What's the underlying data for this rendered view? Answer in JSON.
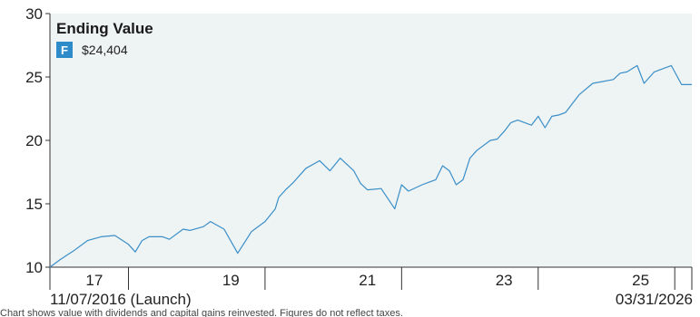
{
  "chart_data": {
    "type": "line",
    "title": "Ending Value",
    "legend": [
      {
        "key": "F",
        "value": "$24,404",
        "color": "#2e8bc9"
      }
    ],
    "series": [
      {
        "color": "#3a8fc8",
        "x": [
          2016.85,
          2017.0,
          2017.2,
          2017.4,
          2017.6,
          2017.8,
          2018.0,
          2018.1,
          2018.2,
          2018.3,
          2018.5,
          2018.6,
          2018.8,
          2018.9,
          2019.1,
          2019.2,
          2019.4,
          2019.6,
          2019.8,
          2020.0,
          2020.15,
          2020.2,
          2020.3,
          2020.4,
          2020.6,
          2020.8,
          2020.95,
          2021.1,
          2021.3,
          2021.4,
          2021.5,
          2021.7,
          2021.9,
          2022.0,
          2022.1,
          2022.3,
          2022.4,
          2022.5,
          2022.6,
          2022.7,
          2022.8,
          2022.9,
          2023.0,
          2023.1,
          2023.3,
          2023.4,
          2023.5,
          2023.6,
          2023.7,
          2023.9,
          2024.0,
          2024.1,
          2024.2,
          2024.3,
          2024.4,
          2024.5,
          2024.6,
          2024.8,
          2024.9,
          2025.1,
          2025.2,
          2025.3,
          2025.45,
          2025.55,
          2025.7,
          2025.8,
          2025.95,
          2026.1,
          2026.25
        ],
        "y": [
          10.0,
          10.6,
          11.3,
          12.1,
          12.4,
          12.5,
          11.8,
          11.2,
          12.1,
          12.4,
          12.4,
          12.2,
          13.0,
          12.9,
          13.2,
          13.6,
          13.0,
          11.1,
          12.8,
          13.6,
          14.6,
          15.5,
          16.1,
          16.6,
          17.8,
          18.4,
          17.6,
          18.6,
          17.6,
          16.6,
          16.1,
          16.2,
          14.6,
          16.5,
          16.0,
          16.5,
          16.7,
          16.9,
          18.0,
          17.6,
          16.5,
          16.9,
          18.6,
          19.2,
          20.0,
          20.1,
          20.7,
          21.4,
          21.6,
          21.2,
          21.9,
          21.0,
          21.9,
          22.0,
          22.2,
          22.9,
          23.6,
          24.5,
          24.6,
          24.8,
          25.3,
          25.4,
          25.9,
          24.5,
          25.4,
          25.6,
          25.9,
          24.4,
          24.4
        ]
      }
    ],
    "xlim": [
      2016.85,
      2026.25
    ],
    "ylim": [
      10,
      30
    ],
    "yticks": [
      10,
      15,
      20,
      25,
      30
    ],
    "xticks": [
      {
        "label": "17",
        "x": 2017.5
      },
      {
        "label": "19",
        "x": 2019.5
      },
      {
        "label": "21",
        "x": 2021.5
      },
      {
        "label": "23",
        "x": 2023.5
      },
      {
        "label": "25",
        "x": 2025.5
      }
    ],
    "xdividers": [
      2018.0,
      2020.0,
      2022.0,
      2024.0,
      2026.0
    ],
    "start_label": "11/07/2016 (Launch)",
    "end_label": "03/31/2026",
    "grid": false
  },
  "colors": {
    "plot_bg": "#eef3f4",
    "axis": "#333333",
    "line": "#3a8fc8",
    "badge": "#2e8bc9"
  },
  "footnote": "Chart shows value with dividends and capital gains reinvested. Figures do not reflect taxes."
}
